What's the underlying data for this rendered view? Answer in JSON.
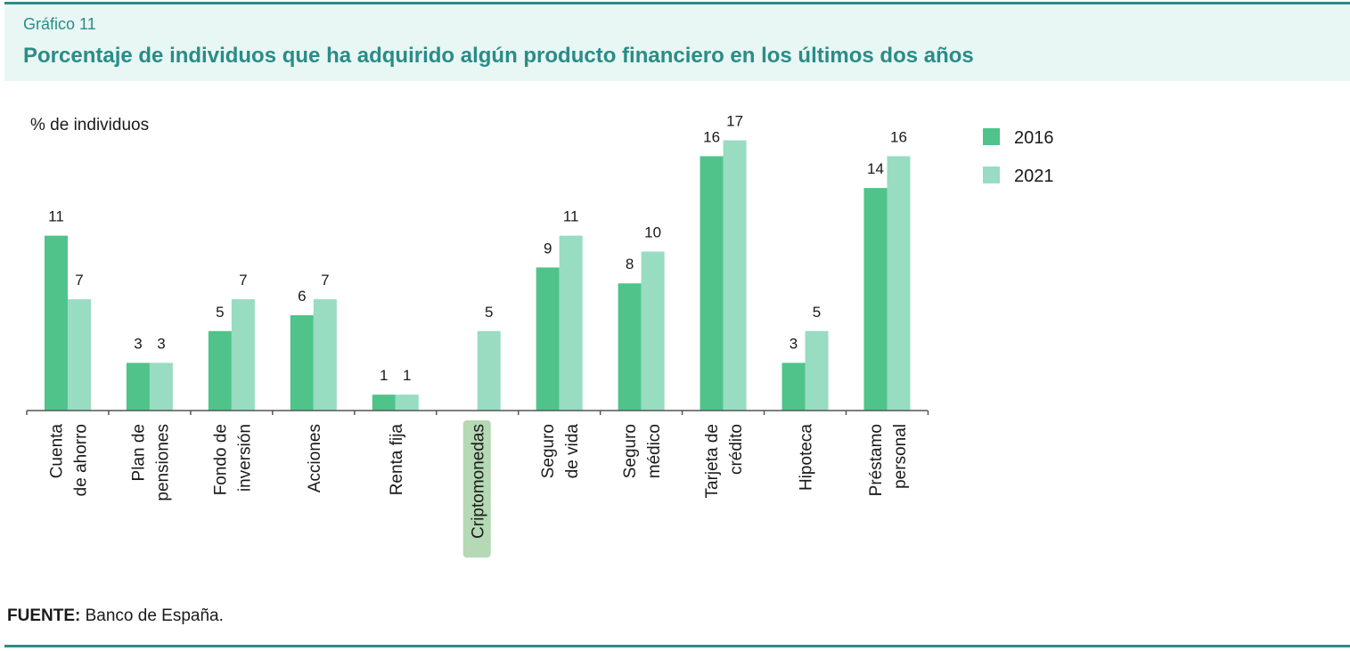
{
  "header": {
    "figure_label": "Gráfico 11",
    "title": "Porcentaje de individuos que ha adquirido algún producto financiero en los últimos dos años"
  },
  "chart_data": {
    "type": "bar",
    "ylabel": "% de individuos",
    "ylim": [
      0,
      17
    ],
    "grid": false,
    "legend_position": "top-right",
    "categories": [
      [
        "Cuenta",
        "de ahorro"
      ],
      [
        "Plan de",
        "pensiones"
      ],
      [
        "Fondo de",
        "inversión"
      ],
      [
        "Acciones"
      ],
      [
        "Renta fija"
      ],
      [
        "Criptomonedas"
      ],
      [
        "Seguro",
        "de vida"
      ],
      [
        "Seguro",
        "médico"
      ],
      [
        "Tarjeta de",
        "crédito"
      ],
      [
        "Hipoteca"
      ],
      [
        "Préstamo",
        "personal"
      ]
    ],
    "highlighted_category": "Criptomonedas",
    "series": [
      {
        "name": "2016",
        "color": "#4fc38a",
        "values": [
          11,
          3,
          5,
          6,
          1,
          null,
          9,
          8,
          16,
          3,
          14
        ]
      },
      {
        "name": "2021",
        "color": "#98dcc1",
        "values": [
          7,
          3,
          7,
          7,
          1,
          5,
          11,
          10,
          17,
          5,
          16
        ]
      }
    ]
  },
  "colors": {
    "accent": "#2a8c87",
    "header_bg": "#e8f6f4",
    "highlight_bg": "#b4d9b4"
  },
  "footer": {
    "source_label": "FUENTE:",
    "source_text": " Banco de España."
  }
}
